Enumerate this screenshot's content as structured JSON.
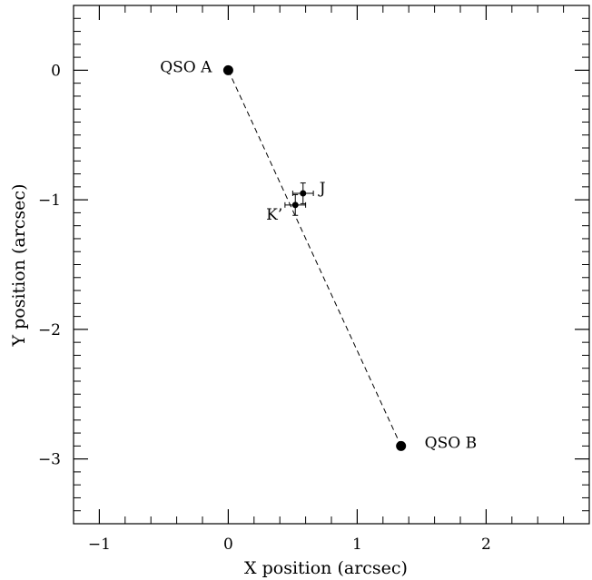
{
  "chart_data": {
    "type": "scatter",
    "xlabel": "X position (arcsec)",
    "ylabel": "Y position (arcsec)",
    "xlim": [
      -1.2,
      2.8
    ],
    "ylim": [
      -3.5,
      0.5
    ],
    "x_major_ticks": [
      -1,
      0,
      1,
      2
    ],
    "y_major_ticks": [
      0,
      -1,
      -2,
      -3
    ],
    "x_minor_step": 0.2,
    "y_minor_step": 0.1,
    "tick_labels_x": [
      "−1",
      "0",
      "1",
      "2"
    ],
    "tick_labels_y": [
      "0",
      "−1",
      "−2",
      "−3"
    ],
    "grid": false,
    "points": [
      {
        "label": "QSO A",
        "x": 0.0,
        "y": 0.0,
        "label_side": "left"
      },
      {
        "label": "QSO B",
        "x": 1.34,
        "y": -2.9,
        "label_side": "right"
      },
      {
        "label": "J",
        "x": 0.58,
        "y": -0.95,
        "xerr": 0.08,
        "yerr": 0.08,
        "label_side": "right"
      },
      {
        "label": "K’",
        "x": 0.52,
        "y": -1.04,
        "xerr": 0.08,
        "yerr": 0.08,
        "label_side": "left"
      }
    ],
    "line": {
      "from": [
        0.0,
        0.0
      ],
      "to": [
        1.34,
        -2.9
      ],
      "style": "dashed"
    }
  }
}
